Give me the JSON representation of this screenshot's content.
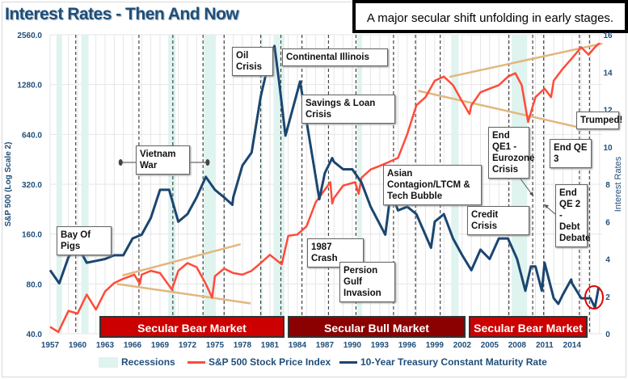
{
  "title": "Interest Rates - Then And Now",
  "callout": "A major secular shift unfolding in early stages.",
  "colors": {
    "sp500": "#ff4b3a",
    "treasury": "#1b4670",
    "recession": "#dff3ef",
    "trend": "#e2b77e",
    "bear": "#cc0000",
    "bull": "#8b0000",
    "circle": "#e00000"
  },
  "annotations": {
    "oil_crisis": "Oil Crisis",
    "continental_illinois": "Continental Illinois",
    "savings_loan": "Savings & Loan Crisis",
    "vietnam": "Vietnam War",
    "bay_of_pigs": "Bay Of Pigs",
    "crash_1987": "1987 Crash",
    "gulf": "Persion Gulf Invasion",
    "asian": "Asian Contagion/LTCM & Tech Bubble",
    "credit": "Credit Crisis",
    "qe1": "End QE1 - Eurozone Crisis",
    "qe3": "End QE 3",
    "trumped": "Trumped!",
    "qe2": "End QE 2 - Debt Debate"
  },
  "markets": {
    "bear1": "Secular Bear Market",
    "bull": "Secular Bull Market",
    "bear2": "Secular Bear Market"
  },
  "legend": {
    "recessions": "Recessions",
    "sp500": "S&P 500 Stock Price Index",
    "treasury": "10-Year Treasury Constant Maturity Rate"
  },
  "chart_data": {
    "type": "line",
    "title": "Interest Rates - Then And Now",
    "xlabel": "",
    "ylabel": "S&P 500 (Log Scale 2)",
    "y2label": "Interest Rates",
    "xlim": [
      1957,
      2017.3
    ],
    "ylim": [
      40,
      2560
    ],
    "y_scale": "log2",
    "y2lim": [
      0,
      16
    ],
    "grid": true,
    "legend_position": "bottom",
    "x_ticks": [
      "1957",
      "1960",
      "1963",
      "1966",
      "1969",
      "1972",
      "1975",
      "1978",
      "1981",
      "1984",
      "1987",
      "1990",
      "1993",
      "1996",
      "1999",
      "2002",
      "2005",
      "2008",
      "2011",
      "2014"
    ],
    "y_ticks": [
      "40.0",
      "80.0",
      "160.0",
      "320.0",
      "640.0",
      "1280.0",
      "2560.0"
    ],
    "y2_ticks": [
      "0",
      "2",
      "4",
      "6",
      "8",
      "10",
      "12",
      "14",
      "16"
    ],
    "series": [
      {
        "name": "S&P 500 Stock Price Index",
        "axis": "left",
        "points": [
          [
            1957,
            44
          ],
          [
            1957.9,
            41
          ],
          [
            1959,
            55
          ],
          [
            1960,
            53
          ],
          [
            1961,
            69
          ],
          [
            1962,
            56
          ],
          [
            1963,
            72
          ],
          [
            1964,
            81
          ],
          [
            1965,
            86
          ],
          [
            1966.2,
            91
          ],
          [
            1966.8,
            80
          ],
          [
            1967,
            91
          ],
          [
            1968,
            96
          ],
          [
            1969,
            93
          ],
          [
            1970.3,
            74
          ],
          [
            1971,
            96
          ],
          [
            1972,
            107
          ],
          [
            1973,
            101
          ],
          [
            1974,
            80
          ],
          [
            1974.7,
            66
          ],
          [
            1975,
            89
          ],
          [
            1976,
            99
          ],
          [
            1977,
            93
          ],
          [
            1978,
            91
          ],
          [
            1979,
            96
          ],
          [
            1980,
            107
          ],
          [
            1981,
            120
          ],
          [
            1982.3,
            105
          ],
          [
            1983,
            156
          ],
          [
            1984,
            159
          ],
          [
            1985,
            178
          ],
          [
            1986,
            249
          ],
          [
            1987.6,
            329
          ],
          [
            1987.8,
            245
          ],
          [
            1988,
            264
          ],
          [
            1989,
            314
          ],
          [
            1990.3,
            329
          ],
          [
            1990.7,
            280
          ],
          [
            1991,
            350
          ],
          [
            1992,
            393
          ],
          [
            1993,
            413
          ],
          [
            1994,
            436
          ],
          [
            1995,
            462
          ],
          [
            1996,
            643
          ],
          [
            1997,
            960
          ],
          [
            1998,
            1075
          ],
          [
            1999,
            1350
          ],
          [
            2000,
            1430
          ],
          [
            2001,
            1270
          ],
          [
            2002,
            1010
          ],
          [
            2002.8,
            850
          ],
          [
            2003,
            960
          ],
          [
            2004,
            1150
          ],
          [
            2005,
            1210
          ],
          [
            2006,
            1270
          ],
          [
            2007,
            1430
          ],
          [
            2007.8,
            1500
          ],
          [
            2008.5,
            1270
          ],
          [
            2009.2,
            760
          ],
          [
            2010,
            1075
          ],
          [
            2011,
            1210
          ],
          [
            2011.7,
            1075
          ],
          [
            2012,
            1350
          ],
          [
            2013,
            1600
          ],
          [
            2014,
            1850
          ],
          [
            2015,
            2150
          ],
          [
            2015.8,
            1940
          ],
          [
            2016.5,
            2150
          ],
          [
            2017,
            2280
          ]
        ]
      },
      {
        "name": "10-Year Treasury Constant Maturity Rate",
        "axis": "right",
        "points": [
          [
            1957,
            3.4
          ],
          [
            1958,
            2.7
          ],
          [
            1959,
            4.1
          ],
          [
            1960,
            4.7
          ],
          [
            1961,
            3.8
          ],
          [
            1962,
            3.9
          ],
          [
            1963,
            4.0
          ],
          [
            1964,
            4.2
          ],
          [
            1965,
            4.2
          ],
          [
            1966,
            5.1
          ],
          [
            1967,
            5.3
          ],
          [
            1968,
            6.2
          ],
          [
            1969,
            7.7
          ],
          [
            1970,
            7.7
          ],
          [
            1971,
            6.0
          ],
          [
            1972,
            6.4
          ],
          [
            1973,
            7.3
          ],
          [
            1974,
            8.4
          ],
          [
            1975,
            7.7
          ],
          [
            1976,
            7.3
          ],
          [
            1976.9,
            6.9
          ],
          [
            1977,
            7.3
          ],
          [
            1978,
            9.0
          ],
          [
            1979,
            9.7
          ],
          [
            1980,
            12.7
          ],
          [
            1981,
            14.8
          ],
          [
            1981.5,
            15.4
          ],
          [
            1982,
            13.5
          ],
          [
            1982.7,
            10.6
          ],
          [
            1984.3,
            13.5
          ],
          [
            1985,
            11.4
          ],
          [
            1986.4,
            7.2
          ],
          [
            1987,
            8.6
          ],
          [
            1987.8,
            9.4
          ],
          [
            1988,
            9.2
          ],
          [
            1989,
            8.8
          ],
          [
            1990,
            8.8
          ],
          [
            1991,
            8.1
          ],
          [
            1992,
            6.8
          ],
          [
            1993.6,
            5.3
          ],
          [
            1994.2,
            7.6
          ],
          [
            1995,
            6.6
          ],
          [
            1996,
            6.8
          ],
          [
            1997,
            6.4
          ],
          [
            1998.6,
            4.6
          ],
          [
            1999,
            6.0
          ],
          [
            2000,
            6.4
          ],
          [
            2001,
            5.1
          ],
          [
            2002,
            4.2
          ],
          [
            2003,
            3.4
          ],
          [
            2004,
            4.5
          ],
          [
            2005,
            4.0
          ],
          [
            2006,
            5.1
          ],
          [
            2007,
            5.1
          ],
          [
            2008,
            4.0
          ],
          [
            2008.9,
            2.3
          ],
          [
            2009.5,
            3.6
          ],
          [
            2010,
            3.6
          ],
          [
            2010.7,
            2.3
          ],
          [
            2011,
            3.8
          ],
          [
            2012,
            1.9
          ],
          [
            2012.5,
            1.6
          ],
          [
            2013,
            2.1
          ],
          [
            2013.9,
            2.9
          ],
          [
            2014,
            2.7
          ],
          [
            2015,
            1.9
          ],
          [
            2016,
            1.9
          ],
          [
            2016.5,
            1.4
          ],
          [
            2016.9,
            2.5
          ]
        ]
      }
    ],
    "recessions": [
      [
        1957.7,
        1958.3
      ],
      [
        1960.4,
        1961.2
      ],
      [
        1969.9,
        1970.7
      ],
      [
        1973.8,
        1975.1
      ],
      [
        1979.9,
        1980.2
      ],
      [
        1981.4,
        1982.6
      ],
      [
        1990.5,
        1991.0
      ],
      [
        2000.8,
        2001.6
      ],
      [
        2007.4,
        2009.1
      ]
    ],
    "event_lines": [
      1959.8,
      1966.7,
      1970.4,
      1973.7,
      1976.0,
      1980.0,
      1982.2,
      1984.5,
      1987.4,
      1990.4,
      1994.5,
      1996.9,
      1999.6,
      2007.1,
      2009.7,
      2010.9,
      2014.8,
      2015.9
    ],
    "trend_lines": [
      [
        [
          1964.9,
          90
        ],
        [
          1977.8,
          139
        ]
      ],
      [
        [
          1964.3,
          80
        ],
        [
          1978.9,
          61
        ]
      ],
      [
        [
          2000.6,
          1424
        ],
        [
          2017.3,
          2265
        ]
      ],
      [
        [
          1997.2,
          1174
        ],
        [
          2014.9,
          703
        ]
      ]
    ],
    "vietnam_span": [
      1964.7,
      1974.2
    ]
  }
}
